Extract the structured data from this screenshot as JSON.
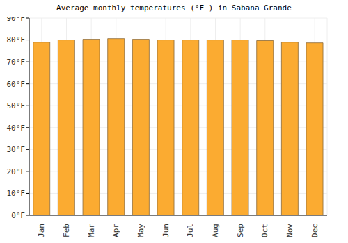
{
  "chart_data": {
    "type": "bar",
    "title": "Average monthly temperatures (°F ) in Sabana Grande",
    "categories": [
      "Jan",
      "Feb",
      "Mar",
      "Apr",
      "May",
      "Jun",
      "Jul",
      "Aug",
      "Sep",
      "Oct",
      "Nov",
      "Dec"
    ],
    "values": [
      79,
      80,
      80.3,
      80.6,
      80.3,
      80,
      80,
      80,
      80,
      79.7,
      79,
      78.7
    ],
    "color": "#fbab31",
    "ylim": [
      0,
      90
    ],
    "yticks": [
      {
        "value": 0,
        "label": "0°F"
      },
      {
        "value": 10,
        "label": "10°F"
      },
      {
        "value": 20,
        "label": "20°F"
      },
      {
        "value": 30,
        "label": "30°F"
      },
      {
        "value": 40,
        "label": "40°F"
      },
      {
        "value": 50,
        "label": "50°F"
      },
      {
        "value": 60,
        "label": "60°F"
      },
      {
        "value": 70,
        "label": "70°F"
      },
      {
        "value": 80,
        "label": "80°F"
      },
      {
        "value": 90,
        "label": "90°F"
      }
    ],
    "grid": true
  }
}
